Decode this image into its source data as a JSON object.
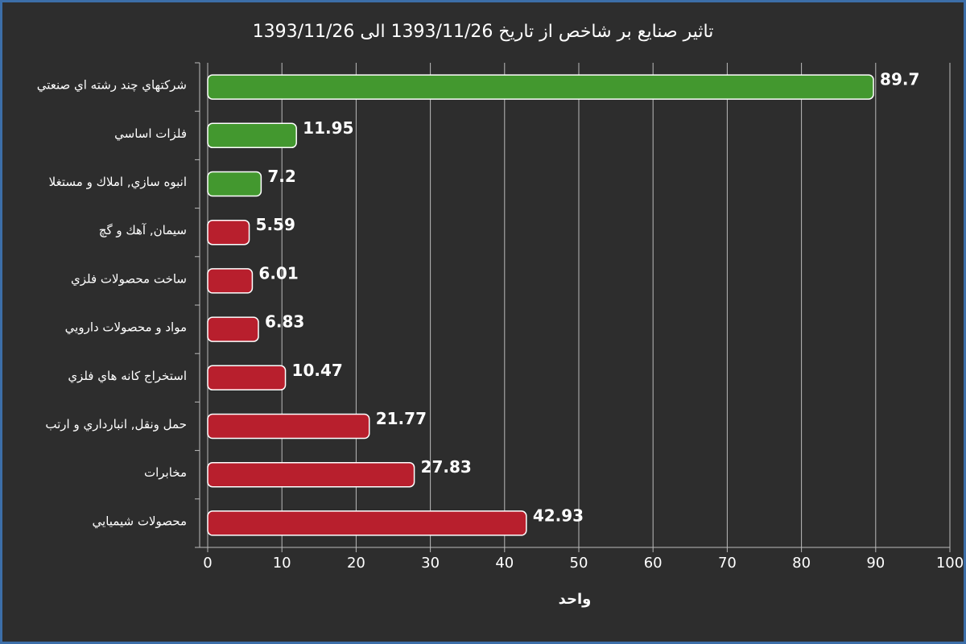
{
  "chart_data": {
    "type": "barh",
    "title": "تاثير صنايع بر شاخص از تاريخ 1393/11/26 الى 1393/11/26",
    "x_label": "واحد",
    "categories": [
      "شركتهاي چند رشته اي صنعتي",
      "فلزات اساسي",
      "انبوه سازي, املاك و مستغلا",
      "سيمان, آهك و گچ",
      "ساخت محصولات فلزي",
      "مواد و محصولات دارويي",
      "استخراج كانه هاي فلزي",
      "حمل ونقل, انبارداري و ارتب",
      "مخابرات",
      "محصولات شيميايي"
    ],
    "values": [
      89.7,
      11.95,
      7.2,
      5.59,
      6.01,
      6.83,
      10.47,
      21.77,
      27.83,
      42.93
    ],
    "colors": [
      "#43982f",
      "#43982f",
      "#43982f",
      "#b81f2d",
      "#b81f2d",
      "#b81f2d",
      "#b81f2d",
      "#b81f2d",
      "#b81f2d",
      "#b81f2d"
    ],
    "xlim": [
      0,
      100
    ],
    "xticks": [
      0,
      10,
      20,
      30,
      40,
      50,
      60,
      70,
      80,
      90,
      100
    ],
    "grid": true
  }
}
